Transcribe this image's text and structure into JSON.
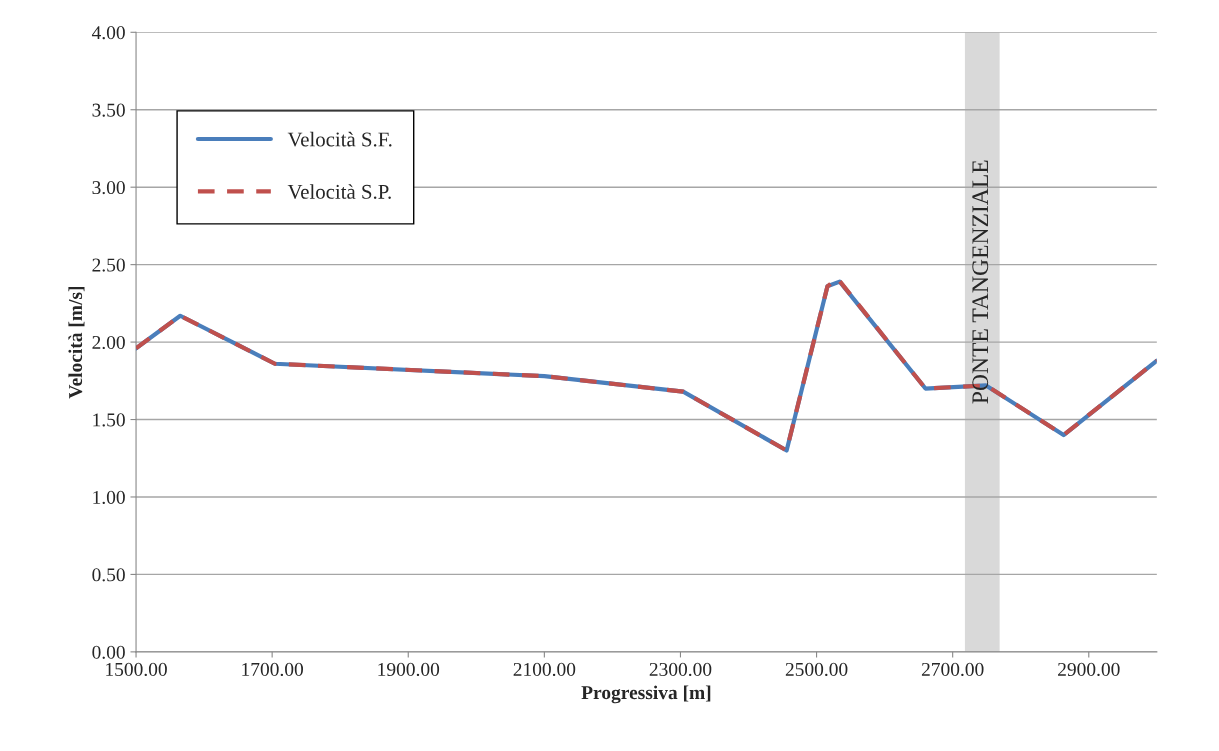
{
  "chart_data": {
    "type": "line",
    "xlabel": "Progressiva [m]",
    "ylabel": "Velocità [m/s]",
    "xlim": [
      1500,
      3000
    ],
    "xticks": [
      {
        "value": 1500,
        "label": "1500.00"
      },
      {
        "value": 1700,
        "label": "1700.00"
      },
      {
        "value": 1900,
        "label": "1900.00"
      },
      {
        "value": 2100,
        "label": "2100.00"
      },
      {
        "value": 2300,
        "label": "2300.00"
      },
      {
        "value": 2500,
        "label": "2500.00"
      },
      {
        "value": 2700,
        "label": "2700.00"
      },
      {
        "value": 2900,
        "label": "2900.00"
      }
    ],
    "ylim": [
      0,
      4
    ],
    "yticks": [
      {
        "value": 0,
        "label": "0.00"
      },
      {
        "value": 0.5,
        "label": "0.50"
      },
      {
        "value": 1,
        "label": "1.00"
      },
      {
        "value": 1.5,
        "label": "1.50"
      },
      {
        "value": 2,
        "label": "2.00"
      },
      {
        "value": 2.5,
        "label": "2.50"
      },
      {
        "value": 3,
        "label": "3.00"
      },
      {
        "value": 3.5,
        "label": "3.50"
      },
      {
        "value": 4,
        "label": "4.00"
      }
    ],
    "series": [
      {
        "name": "Velocità S.F.",
        "color": "#4a7ebb",
        "line_style": "solid",
        "x": [
          1500,
          1565,
          1704,
          2100,
          2304,
          2456,
          2516,
          2534,
          2660,
          2749,
          2863,
          3000
        ],
        "values": [
          1.96,
          2.17,
          1.86,
          1.78,
          1.68,
          1.3,
          2.36,
          2.39,
          1.7,
          1.72,
          1.4,
          1.88
        ]
      },
      {
        "name": "Velocità S.P.",
        "color": "#c0504d",
        "line_style": "dashed",
        "x": [
          1500,
          1565,
          1704,
          2100,
          2304,
          2456,
          2516,
          2531,
          2660,
          2749,
          2863,
          3000
        ],
        "values": [
          1.96,
          2.17,
          1.86,
          1.78,
          1.68,
          1.3,
          2.36,
          2.41,
          1.7,
          1.72,
          1.4,
          1.88
        ]
      }
    ],
    "bands": [
      {
        "axis": "x",
        "from": 2718,
        "to": 2769,
        "label": "PONTE TANGENZIALE",
        "color": "#d9d9d9"
      }
    ],
    "grid": "y",
    "legend": "top left"
  }
}
